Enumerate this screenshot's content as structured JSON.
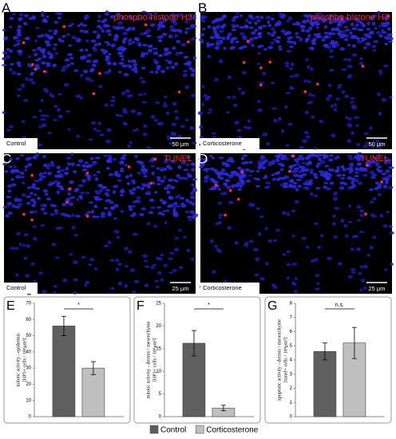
{
  "panels": [
    {
      "letter": "A",
      "stain": "phospho-histone H3",
      "condition": "Control",
      "scale": "50 μm"
    },
    {
      "letter": "B",
      "stain": "phospho-histone H3",
      "condition": "Corticosterone",
      "scale": "50 μm"
    },
    {
      "letter": "C",
      "stain": "TUNEL",
      "condition": "Control",
      "scale": "25 μm"
    },
    {
      "letter": "D",
      "stain": "TUNEL",
      "condition": "Corticosterone",
      "scale": "25 μm"
    }
  ],
  "legend": {
    "items": [
      {
        "name": "Control",
        "color": "#5f5f5f"
      },
      {
        "name": "Corticosterone",
        "color": "#bfbfbf"
      }
    ]
  },
  "chart_data": [
    {
      "type": "bar",
      "panel": "E",
      "ylabel": [
        "mitotic activity - epidermis",
        "[HP3+ cells / 10⁴μm²]"
      ],
      "categories": [
        null
      ],
      "series": [
        {
          "values": [
            56
          ],
          "errors": [
            6
          ]
        },
        {
          "values": [
            30
          ],
          "errors": [
            4
          ]
        }
      ],
      "ylim": [
        0,
        70
      ],
      "yticks": [
        0,
        10,
        20,
        30,
        40,
        50,
        60,
        70
      ],
      "annotation": "*"
    },
    {
      "type": "bar",
      "panel": "F",
      "ylabel": [
        "mitotic activity - dermis / mesenchyme",
        "[HP3+ cells / 10⁴μm²]"
      ],
      "categories": [
        null
      ],
      "series": [
        {
          "values": [
            16.2
          ],
          "errors": [
            2.8
          ]
        },
        {
          "values": [
            1.9
          ],
          "errors": [
            0.6
          ]
        }
      ],
      "ylim": [
        0,
        25
      ],
      "yticks": [
        0,
        5,
        10,
        15,
        20,
        25
      ],
      "annotation": "*"
    },
    {
      "type": "bar",
      "panel": "G",
      "ylabel": [
        "apoptotic activity - dermis / mesenchyme",
        "[tunel+ cells / 10⁴μm²]"
      ],
      "categories": [
        null
      ],
      "series": [
        {
          "values": [
            4.6
          ],
          "errors": [
            0.6
          ]
        },
        {
          "values": [
            5.2
          ],
          "errors": [
            1.1
          ]
        }
      ],
      "ylim": [
        0,
        8
      ],
      "yticks": [
        0,
        1,
        2,
        3,
        4,
        5,
        6,
        7,
        8
      ],
      "annotation": "n.s."
    }
  ]
}
